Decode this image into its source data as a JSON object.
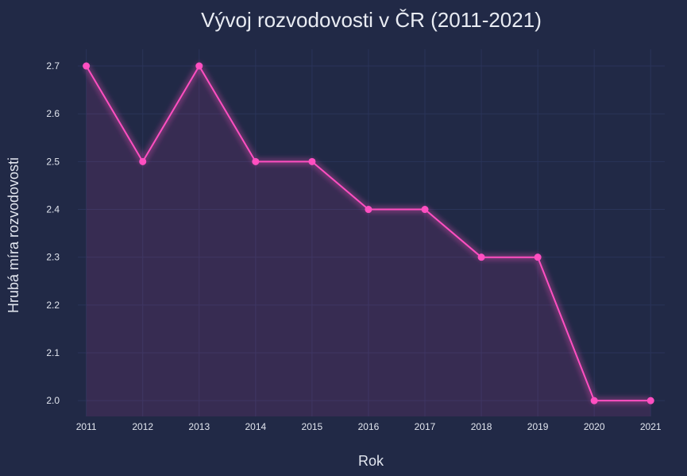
{
  "chart_data": {
    "type": "line",
    "title": "Vývoj rozvodovosti v ČR (2011-2021)",
    "xlabel": "Rok",
    "ylabel": "Hrubá míra rozvodovosti",
    "x": [
      2011,
      2012,
      2013,
      2014,
      2015,
      2016,
      2017,
      2018,
      2019,
      2020,
      2021
    ],
    "series": [
      {
        "values": [
          2.7,
          2.5,
          2.7,
          2.5,
          2.5,
          2.4,
          2.4,
          2.3,
          2.3,
          2.0,
          2.0
        ]
      }
    ],
    "xlim": [
      2010.85,
      2021.25
    ],
    "ylim": [
      1.967,
      2.735
    ],
    "yticks": [
      2.0,
      2.1,
      2.2,
      2.3,
      2.4,
      2.5,
      2.6,
      2.7
    ],
    "grid": true,
    "area_fill": true,
    "colors": {
      "background": "#212946",
      "line": "#ff4fc1",
      "grid": "#2a3459",
      "text": "#e2e6ef"
    }
  }
}
